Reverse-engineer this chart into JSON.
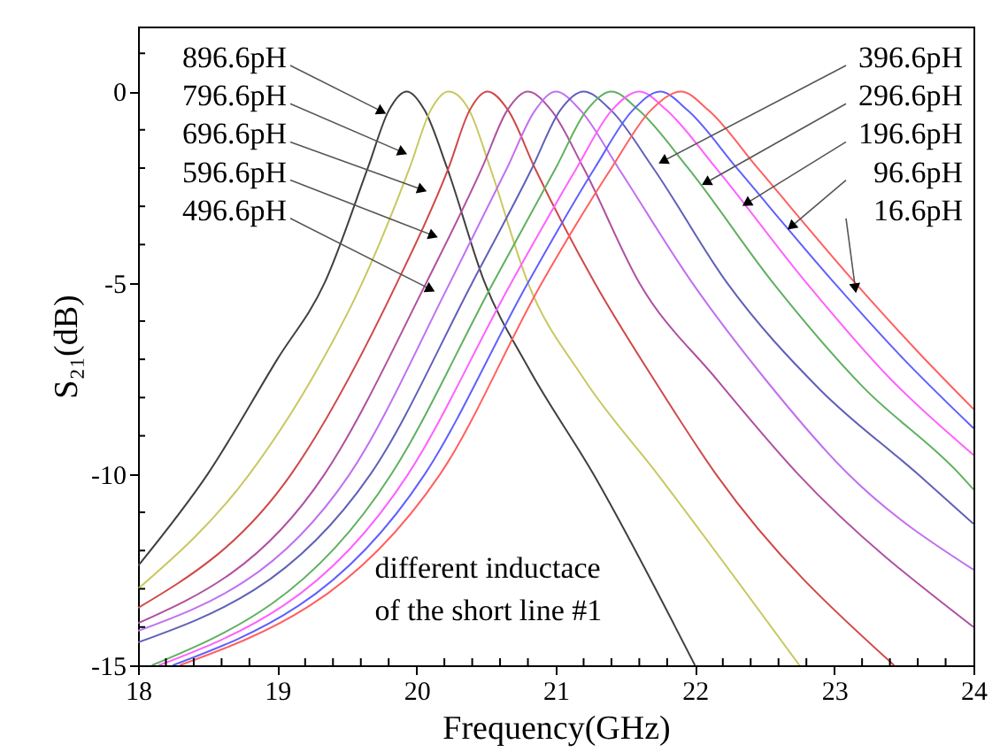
{
  "chart_data": {
    "type": "line",
    "xlabel": "Frequency(GHz)",
    "ylabel": "S₂₁(dB)",
    "xlim": [
      18,
      24
    ],
    "ylim": [
      -15,
      1.7
    ],
    "xticks": [
      18,
      {
        "value": 18.2,
        "label": null
      },
      {
        "value": 18.4,
        "label": null
      },
      {
        "value": 18.6,
        "label": null
      },
      {
        "value": 18.8,
        "label": null
      },
      19,
      {
        "value": 19.2,
        "label": null
      },
      {
        "value": 19.4,
        "label": null
      },
      {
        "value": 19.6,
        "label": null
      },
      {
        "value": 19.8,
        "label": null
      },
      20,
      {
        "value": 20.2,
        "label": null
      },
      {
        "value": 20.4,
        "label": null
      },
      {
        "value": 20.6,
        "label": null
      },
      {
        "value": 20.8,
        "label": null
      },
      21,
      {
        "value": 21.2,
        "label": null
      },
      {
        "value": 21.4,
        "label": null
      },
      {
        "value": 21.6,
        "label": null
      },
      {
        "value": 21.8,
        "label": null
      },
      22,
      {
        "value": 22.2,
        "label": null
      },
      {
        "value": 22.4,
        "label": null
      },
      {
        "value": 22.6,
        "label": null
      },
      {
        "value": 22.8,
        "label": null
      },
      23,
      {
        "value": 23.2,
        "label": null
      },
      {
        "value": 23.4,
        "label": null
      },
      {
        "value": 23.6,
        "label": null
      },
      {
        "value": 23.8,
        "label": null
      },
      24
    ],
    "yticks": [
      {
        "value": 1,
        "label": null
      },
      0,
      {
        "value": -1,
        "label": null
      },
      {
        "value": -2,
        "label": null
      },
      {
        "value": -3,
        "label": null
      },
      {
        "value": -4,
        "label": null
      },
      -5,
      {
        "value": -6,
        "label": null
      },
      {
        "value": -7,
        "label": null
      },
      {
        "value": -8,
        "label": null
      },
      {
        "value": -9,
        "label": null
      },
      -10,
      {
        "value": -11,
        "label": null
      },
      {
        "value": -12,
        "label": null
      },
      {
        "value": -13,
        "label": null
      },
      {
        "value": -14,
        "label": null
      },
      -15
    ],
    "grid": false,
    "marker": "none",
    "line_style": "solid",
    "series": [
      {
        "color": "#404040",
        "x": [
          18,
          18.5,
          19,
          19.34,
          19.65,
          19.8,
          19.93,
          20.06,
          20.22,
          20.49,
          20.8,
          21.27,
          22.0
        ],
        "values": [
          -12.4,
          -10,
          -7,
          -5,
          -2,
          -0.5,
          0,
          -0.5,
          -2,
          -5,
          -7.2,
          -10,
          -15
        ]
      },
      {
        "color": "#c8c860",
        "x": [
          18,
          18.8,
          19.25,
          19.61,
          19.95,
          20.1,
          20.23,
          20.38,
          20.53,
          20.8,
          21.2,
          21.73,
          22.75
        ],
        "values": [
          -13,
          -10,
          -7.5,
          -5,
          -2,
          -0.5,
          0,
          -0.5,
          -2,
          -5,
          -7.5,
          -10,
          -15
        ]
      },
      {
        "color": "#d04848",
        "x": [
          18,
          19.1,
          19.86,
          20.23,
          20.38,
          20.51,
          20.66,
          20.85,
          21.28,
          21.7,
          22.15,
          23.43
        ],
        "values": [
          -13.5,
          -10,
          -5,
          -2,
          -0.5,
          0,
          -0.5,
          -2,
          -5,
          -7.5,
          -10,
          -15
        ]
      },
      {
        "color": "#b050a0",
        "x": [
          18,
          19.34,
          20.07,
          20.47,
          20.65,
          20.8,
          20.97,
          21.2,
          21.6,
          22.15,
          22.74,
          24
        ],
        "values": [
          -13.9,
          -10,
          -5,
          -2,
          -0.5,
          0,
          -0.5,
          -2,
          -5,
          -7.5,
          -10,
          -14
        ]
      },
      {
        "color": "#c070f0",
        "x": [
          18,
          19.52,
          20.24,
          20.65,
          20.85,
          21.0,
          21.18,
          21.45,
          21.98,
          22.5,
          23.1,
          24
        ],
        "values": [
          -14.1,
          -10,
          -5,
          -2,
          -0.5,
          0,
          -0.5,
          -2,
          -5,
          -7.5,
          -10,
          -12.5
        ]
      },
      {
        "color": "#6060b8",
        "x": [
          18,
          19.67,
          20.4,
          20.83,
          21.03,
          21.2,
          21.4,
          21.7,
          22.23,
          22.9,
          23.6,
          24
        ],
        "values": [
          -14.4,
          -10,
          -5,
          -2,
          -0.5,
          0,
          -0.5,
          -2,
          -5,
          -7.8,
          -10,
          -11.3
        ]
      },
      {
        "color": "#60b060",
        "x": [
          18.1,
          19.82,
          20.55,
          21.0,
          21.22,
          21.4,
          21.6,
          21.95,
          22.56,
          23.2,
          23.9,
          24
        ],
        "values": [
          -15,
          -10,
          -5,
          -2,
          -0.5,
          0,
          -0.5,
          -2,
          -5,
          -7.7,
          -10,
          -10.4
        ]
      },
      {
        "color": "#ff60ff",
        "x": [
          18.15,
          19.94,
          20.68,
          21.15,
          21.4,
          21.6,
          21.8,
          22.15,
          22.8,
          23.4,
          24
        ],
        "values": [
          -15,
          -10,
          -5,
          -2,
          -0.5,
          0,
          -0.5,
          -2,
          -5,
          -7.5,
          -9.5
        ]
      },
      {
        "color": "#6060ff",
        "x": [
          18.25,
          20.06,
          20.8,
          21.28,
          21.55,
          21.75,
          21.95,
          22.3,
          23.0,
          23.5,
          24
        ],
        "values": [
          -15,
          -10,
          -5,
          -2,
          -0.5,
          0,
          -0.5,
          -2,
          -5,
          -7,
          -8.8
        ]
      },
      {
        "color": "#ff6060",
        "x": [
          18.3,
          20.17,
          20.9,
          21.4,
          21.68,
          21.9,
          22.1,
          22.45,
          23.15,
          23.6,
          24
        ],
        "values": [
          -15,
          -10,
          -5,
          -2,
          -0.5,
          0,
          -0.5,
          -2,
          -5,
          -6.8,
          -8.3
        ]
      }
    ],
    "annotations": [
      {
        "text": "896.6pH",
        "x": 19.74,
        "y": -0.5
      },
      {
        "text": "796.6pH",
        "x": 19.89,
        "y": -1.57
      },
      {
        "text": "696.6pH",
        "x": 20.03,
        "y": -2.55
      },
      {
        "text": "596.6pH",
        "x": 20.11,
        "y": -3.75
      },
      {
        "text": "496.6pH",
        "x": 20.09,
        "y": -5.15
      },
      {
        "text": "396.6pH",
        "x": 21.78,
        "y": -1.8
      },
      {
        "text": "296.6pH",
        "x": 22.09,
        "y": -2.36
      },
      {
        "text": "196.6pH",
        "x": 22.38,
        "y": -2.9
      },
      {
        "text": "96.6pH",
        "x": 22.7,
        "y": -3.5
      },
      {
        "text": "16.6pH",
        "x": 23.15,
        "y": -5.1
      },
      "different inductace\nof the short line #1"
    ]
  }
}
